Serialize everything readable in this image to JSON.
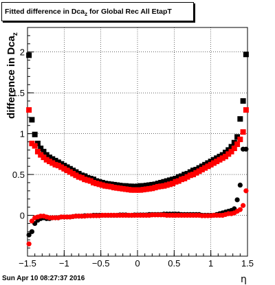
{
  "chart_data": {
    "type": "scatter",
    "title_main": "Fitted difference in Dca",
    "title_sub": "z",
    "title_rest": " for Global Rec All EtapT",
    "ylabel_main": "difference in Dca",
    "ylabel_sub": "z",
    "xlabel": "η",
    "xlim": [
      -1.5,
      1.5
    ],
    "ylim": [
      -0.5,
      2.3
    ],
    "x_ticks": [
      -1.5,
      -1,
      -0.5,
      0,
      0.5,
      1,
      1.5
    ],
    "x_tick_labels": [
      "−1.5",
      "−1",
      "−0.5",
      "0",
      "0.5",
      "1",
      "1.5"
    ],
    "y_ticks": [
      0,
      0.5,
      1,
      1.5,
      2
    ],
    "y_tick_labels": [
      "0",
      "0.5",
      "1",
      "1.5",
      "2"
    ],
    "grid": true,
    "series": [
      {
        "marker": "square",
        "color": "#000000",
        "x": [
          -1.48,
          -1.44,
          -1.4,
          -1.36,
          -1.32,
          -1.28,
          -1.24,
          -1.2,
          -1.16,
          -1.12,
          -1.08,
          -1.04,
          -1.0,
          -0.96,
          -0.92,
          -0.88,
          -0.84,
          -0.8,
          -0.76,
          -0.72,
          -0.68,
          -0.64,
          -0.6,
          -0.56,
          -0.52,
          -0.48,
          -0.44,
          -0.4,
          -0.36,
          -0.32,
          -0.28,
          -0.24,
          -0.2,
          -0.16,
          -0.12,
          -0.08,
          -0.04,
          0.0,
          0.04,
          0.08,
          0.12,
          0.16,
          0.2,
          0.24,
          0.28,
          0.32,
          0.36,
          0.4,
          0.44,
          0.48,
          0.52,
          0.56,
          0.6,
          0.64,
          0.68,
          0.72,
          0.76,
          0.8,
          0.84,
          0.88,
          0.92,
          0.96,
          1.0,
          1.04,
          1.08,
          1.12,
          1.16,
          1.2,
          1.24,
          1.28,
          1.32,
          1.36,
          1.4,
          1.44,
          1.48
        ],
        "y": [
          1.96,
          1.17,
          0.99,
          0.88,
          0.82,
          0.78,
          0.74,
          0.71,
          0.69,
          0.67,
          0.65,
          0.63,
          0.61,
          0.59,
          0.57,
          0.55,
          0.53,
          0.51,
          0.49,
          0.48,
          0.46,
          0.45,
          0.44,
          0.42,
          0.41,
          0.4,
          0.39,
          0.385,
          0.38,
          0.375,
          0.37,
          0.365,
          0.36,
          0.36,
          0.355,
          0.355,
          0.35,
          0.355,
          0.36,
          0.36,
          0.365,
          0.37,
          0.375,
          0.38,
          0.39,
          0.4,
          0.41,
          0.42,
          0.43,
          0.44,
          0.45,
          0.47,
          0.48,
          0.5,
          0.51,
          0.53,
          0.55,
          0.56,
          0.58,
          0.6,
          0.62,
          0.64,
          0.66,
          0.68,
          0.7,
          0.72,
          0.74,
          0.77,
          0.8,
          0.84,
          0.89,
          0.96,
          1.18,
          1.4,
          1.97
        ]
      },
      {
        "marker": "square",
        "color": "#ff0000",
        "x": [
          -1.48,
          -1.44,
          -1.4,
          -1.36,
          -1.32,
          -1.28,
          -1.24,
          -1.2,
          -1.16,
          -1.12,
          -1.08,
          -1.04,
          -1.0,
          -0.96,
          -0.92,
          -0.88,
          -0.84,
          -0.8,
          -0.76,
          -0.72,
          -0.68,
          -0.64,
          -0.6,
          -0.56,
          -0.52,
          -0.48,
          -0.44,
          -0.4,
          -0.36,
          -0.32,
          -0.28,
          -0.24,
          -0.2,
          -0.16,
          -0.12,
          -0.08,
          -0.04,
          0.0,
          0.04,
          0.08,
          0.12,
          0.16,
          0.2,
          0.24,
          0.28,
          0.32,
          0.36,
          0.4,
          0.44,
          0.48,
          0.52,
          0.56,
          0.6,
          0.64,
          0.68,
          0.72,
          0.76,
          0.8,
          0.84,
          0.88,
          0.92,
          0.96,
          1.0,
          1.04,
          1.08,
          1.12,
          1.16,
          1.2,
          1.24,
          1.28,
          1.32,
          1.36,
          1.4,
          1.44,
          1.48
        ],
        "y": [
          1.29,
          0.88,
          0.85,
          0.78,
          0.74,
          0.71,
          0.68,
          0.66,
          0.64,
          0.62,
          0.61,
          0.59,
          0.57,
          0.55,
          0.53,
          0.51,
          0.49,
          0.47,
          0.46,
          0.44,
          0.43,
          0.42,
          0.4,
          0.39,
          0.38,
          0.37,
          0.36,
          0.355,
          0.35,
          0.34,
          0.335,
          0.33,
          0.325,
          0.32,
          0.315,
          0.31,
          0.31,
          0.31,
          0.31,
          0.315,
          0.32,
          0.325,
          0.33,
          0.34,
          0.35,
          0.355,
          0.36,
          0.37,
          0.38,
          0.39,
          0.41,
          0.42,
          0.44,
          0.45,
          0.47,
          0.49,
          0.5,
          0.52,
          0.54,
          0.56,
          0.58,
          0.6,
          0.62,
          0.64,
          0.66,
          0.68,
          0.7,
          0.72,
          0.75,
          0.78,
          0.82,
          0.87,
          0.93,
          1.02,
          1.29
        ]
      },
      {
        "marker": "circle",
        "color": "#000000",
        "x": [
          -1.48,
          -1.44,
          -1.4,
          -1.36,
          -1.32,
          -1.28,
          -1.24,
          -1.2,
          -1.16,
          -1.12,
          -1.08,
          -1.04,
          -1.0,
          -0.96,
          -0.92,
          -0.88,
          -0.84,
          -0.8,
          -0.76,
          -0.72,
          -0.68,
          -0.64,
          -0.6,
          -0.56,
          -0.52,
          -0.48,
          -0.44,
          -0.4,
          -0.36,
          -0.32,
          -0.28,
          -0.24,
          -0.2,
          -0.16,
          -0.12,
          -0.08,
          -0.04,
          0.0,
          0.04,
          0.08,
          0.12,
          0.16,
          0.2,
          0.24,
          0.28,
          0.32,
          0.36,
          0.4,
          0.44,
          0.48,
          0.52,
          0.56,
          0.6,
          0.64,
          0.68,
          0.72,
          0.76,
          0.8,
          0.84,
          0.88,
          0.92,
          0.96,
          1.0,
          1.04,
          1.08,
          1.12,
          1.16,
          1.2,
          1.24,
          1.28,
          1.32,
          1.36,
          1.4,
          1.44,
          1.48
        ],
        "y": [
          -0.24,
          -0.2,
          -0.1,
          -0.06,
          -0.04,
          -0.03,
          -0.04,
          -0.04,
          -0.03,
          -0.03,
          -0.03,
          -0.02,
          -0.02,
          -0.02,
          -0.02,
          -0.015,
          -0.01,
          -0.01,
          -0.01,
          -0.005,
          -0.005,
          -0.005,
          0.0,
          0.0,
          0.0,
          0.0,
          0.0,
          0.0,
          0.0,
          0.0,
          0.0,
          0.005,
          0.005,
          0.005,
          0.0,
          0.0,
          0.005,
          0.005,
          0.005,
          0.005,
          0.005,
          0.01,
          0.01,
          0.01,
          0.01,
          0.01,
          0.015,
          0.015,
          0.015,
          0.015,
          0.015,
          0.015,
          0.01,
          0.01,
          0.01,
          0.01,
          0.01,
          0.01,
          0.01,
          0.0,
          0.0,
          0.0,
          0.0,
          0.0,
          0.01,
          0.02,
          0.03,
          0.04,
          0.05,
          0.06,
          0.08,
          0.19,
          0.37,
          0.81,
          0.81
        ]
      },
      {
        "marker": "circle",
        "color": "#ff0000",
        "x": [
          -1.48,
          -1.44,
          -1.4,
          -1.36,
          -1.32,
          -1.28,
          -1.24,
          -1.2,
          -1.16,
          -1.12,
          -1.08,
          -1.04,
          -1.0,
          -0.96,
          -0.92,
          -0.88,
          -0.84,
          -0.8,
          -0.76,
          -0.72,
          -0.68,
          -0.64,
          -0.6,
          -0.56,
          -0.52,
          -0.48,
          -0.44,
          -0.4,
          -0.36,
          -0.32,
          -0.28,
          -0.24,
          -0.2,
          -0.16,
          -0.12,
          -0.08,
          -0.04,
          0.0,
          0.04,
          0.08,
          0.12,
          0.16,
          0.2,
          0.24,
          0.28,
          0.32,
          0.36,
          0.4,
          0.44,
          0.48,
          0.52,
          0.56,
          0.6,
          0.64,
          0.68,
          0.72,
          0.76,
          0.8,
          0.84,
          0.88,
          0.92,
          0.96,
          1.0,
          1.04,
          1.08,
          1.12,
          1.16,
          1.2,
          1.24,
          1.28,
          1.32,
          1.36,
          1.4,
          1.44,
          1.48
        ],
        "y": [
          -0.35,
          -0.07,
          -0.03,
          -0.02,
          -0.01,
          -0.01,
          -0.02,
          -0.03,
          -0.03,
          -0.03,
          -0.03,
          -0.02,
          -0.02,
          -0.02,
          -0.02,
          -0.015,
          -0.01,
          -0.01,
          -0.01,
          -0.01,
          -0.005,
          -0.005,
          -0.005,
          -0.005,
          -0.005,
          0.0,
          0.0,
          0.0,
          0.0,
          0.0,
          0.0,
          0.0,
          0.0,
          0.0,
          0.0,
          0.0,
          0.0,
          0.0,
          0.0,
          0.0,
          0.0,
          0.0,
          0.005,
          0.005,
          0.005,
          0.005,
          0.005,
          0.0,
          0.0,
          0.0,
          0.0,
          0.0,
          0.0,
          0.0,
          0.0,
          0.0,
          0.0,
          0.0,
          0.0,
          -0.005,
          -0.005,
          -0.005,
          -0.005,
          0.0,
          0.0,
          0.0,
          0.0,
          0.01,
          0.02,
          0.02,
          0.03,
          0.05,
          0.07,
          0.12,
          0.3
        ]
      }
    ]
  },
  "footer": {
    "timestamp": "Sun Apr 10 08:27:37 2016"
  }
}
